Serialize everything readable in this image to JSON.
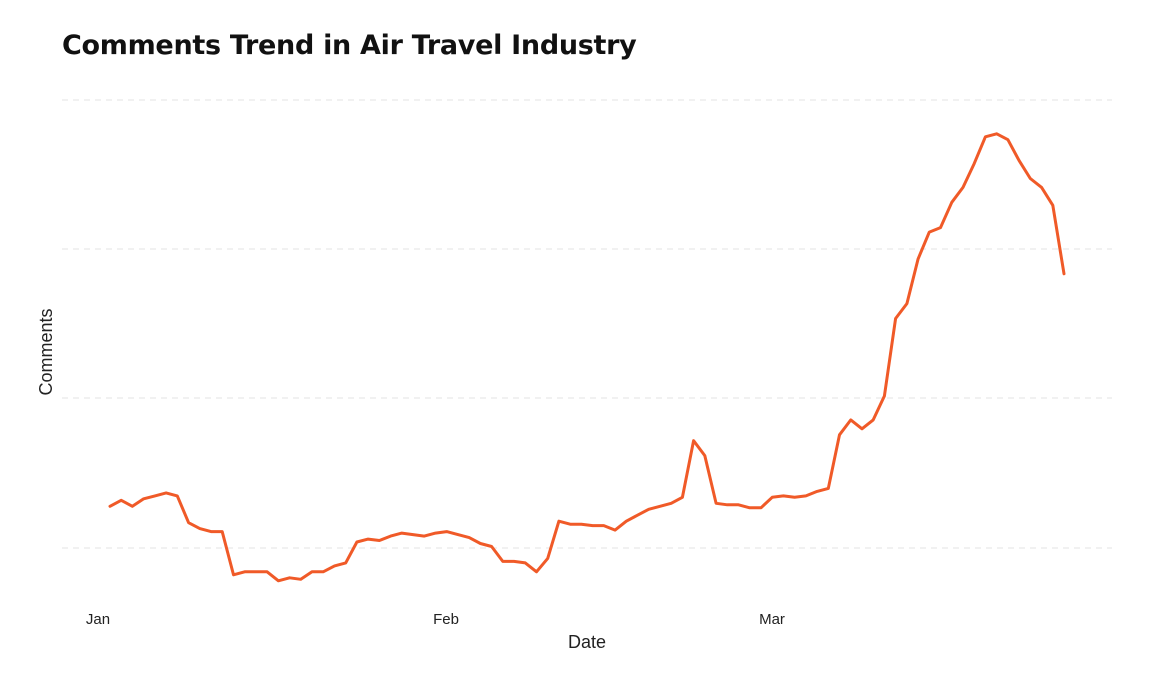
{
  "chart_data": {
    "type": "line",
    "title": "Comments Trend in Air Travel Industry",
    "xlabel": "Date",
    "ylabel": "Comments",
    "x_tick_labels": [
      "Jan",
      "Feb",
      "Mar"
    ],
    "y_tick_labels": [],
    "grid": true,
    "legend": false,
    "color": "#f05a28",
    "series": [
      {
        "values": [
          14,
          16,
          14,
          16.5,
          17.5,
          18.5,
          17.5,
          8.5,
          6.5,
          5.5,
          5.5,
          -9,
          -8,
          -8,
          -8,
          -11,
          -10,
          -10.5,
          -8,
          -8,
          -6,
          -5,
          2,
          3,
          2.5,
          4,
          5,
          4.5,
          4,
          5,
          5.5,
          4.5,
          3.5,
          1.5,
          0.5,
          -4.5,
          -4.5,
          -5,
          -8,
          -3.5,
          9,
          8,
          8,
          7.5,
          7.5,
          6,
          9,
          11,
          13,
          14,
          15,
          17,
          36,
          31,
          15,
          14.5,
          14.5,
          13.5,
          13.5,
          17,
          17.5,
          17,
          17.5,
          19,
          20,
          38,
          43,
          40,
          43,
          51,
          77,
          82,
          97,
          106,
          107.5,
          116,
          121,
          129,
          138,
          139,
          137,
          130,
          124,
          121,
          115,
          92
        ]
      }
    ]
  }
}
